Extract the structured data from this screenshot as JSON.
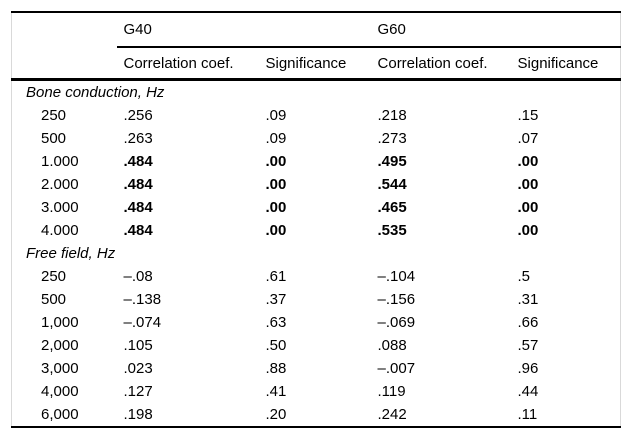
{
  "colors": {
    "background": "#ffffff",
    "rule": "#000000",
    "side_border": "#d9d9d9",
    "text": "#000000"
  },
  "table": {
    "groups": [
      {
        "label": "G40"
      },
      {
        "label": "G60"
      }
    ],
    "columns": [
      "Correlation coef.",
      "Significance",
      "Correlation coef.",
      "Significance"
    ],
    "sections": [
      {
        "label": "Bone conduction, Hz",
        "rows": [
          {
            "freq": "250",
            "values": [
              ".256",
              ".09",
              ".218",
              ".15"
            ],
            "bold": false
          },
          {
            "freq": "500",
            "values": [
              ".263",
              ".09",
              ".273",
              ".07"
            ],
            "bold": false
          },
          {
            "freq": "1.000",
            "values": [
              ".484",
              ".00",
              ".495",
              ".00"
            ],
            "bold": true
          },
          {
            "freq": "2.000",
            "values": [
              ".484",
              ".00",
              ".544",
              ".00"
            ],
            "bold": true
          },
          {
            "freq": "3.000",
            "values": [
              ".484",
              ".00",
              ".465",
              ".00"
            ],
            "bold": true
          },
          {
            "freq": "4.000",
            "values": [
              ".484",
              ".00",
              ".535",
              ".00"
            ],
            "bold": true
          }
        ]
      },
      {
        "label": "Free field, Hz",
        "rows": [
          {
            "freq": "250",
            "values": [
              "–.08",
              ".61",
              "–.104",
              ".5"
            ],
            "bold": false
          },
          {
            "freq": "500",
            "values": [
              "–.138",
              ".37",
              "–.156",
              ".31"
            ],
            "bold": false
          },
          {
            "freq": "1,000",
            "values": [
              "–.074",
              ".63",
              "–.069",
              ".66"
            ],
            "bold": false
          },
          {
            "freq": "2,000",
            "values": [
              ".105",
              ".50",
              ".088",
              ".57"
            ],
            "bold": false
          },
          {
            "freq": "3,000",
            "values": [
              ".023",
              ".88",
              "–.007",
              ".96"
            ],
            "bold": false
          },
          {
            "freq": "4,000",
            "values": [
              ".127",
              ".41",
              ".119",
              ".44"
            ],
            "bold": false
          },
          {
            "freq": "6,000",
            "values": [
              ".198",
              ".20",
              ".242",
              ".11"
            ],
            "bold": false
          }
        ]
      }
    ]
  }
}
